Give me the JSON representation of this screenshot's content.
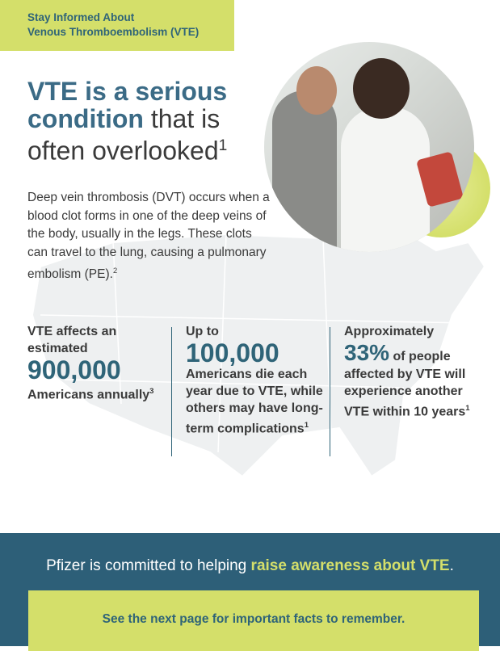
{
  "header": {
    "line1": "Stay Informed About",
    "line2": "Venous Thromboembolism (VTE)"
  },
  "headline": {
    "bold1": "VTE is a serious",
    "bold2": "condition",
    "rest1": " that is",
    "rest2": "often overlooked",
    "ref": "1"
  },
  "intro": {
    "text": "Deep vein thrombosis (DVT) occurs when a blood clot forms in one of the deep veins of the body, usually in the legs. These clots can travel to the lung, causing a pulmonary embolism (PE).",
    "ref": "2"
  },
  "stats": [
    {
      "pre": "VTE affects an estimated",
      "number": "900,000",
      "post": "Americans annually",
      "ref": "3"
    },
    {
      "pre": "Up to",
      "number": "100,000",
      "post": "Americans die each year due to VTE, while others may have long-term complications",
      "ref": "1"
    },
    {
      "pre": "Approximately",
      "number": "33%",
      "mid": " of people",
      "post": "affected by VTE will experience another VTE within 10 years",
      "ref": "1"
    }
  ],
  "footer": {
    "text": "Pfizer is committed to helping ",
    "highlight": "raise awareness about VTE",
    "end": ".",
    "cta": "See the next page for important facts to remember."
  },
  "colors": {
    "lime": "#d4df6a",
    "teal": "#2d5f78",
    "heading": "#3b6b86"
  }
}
